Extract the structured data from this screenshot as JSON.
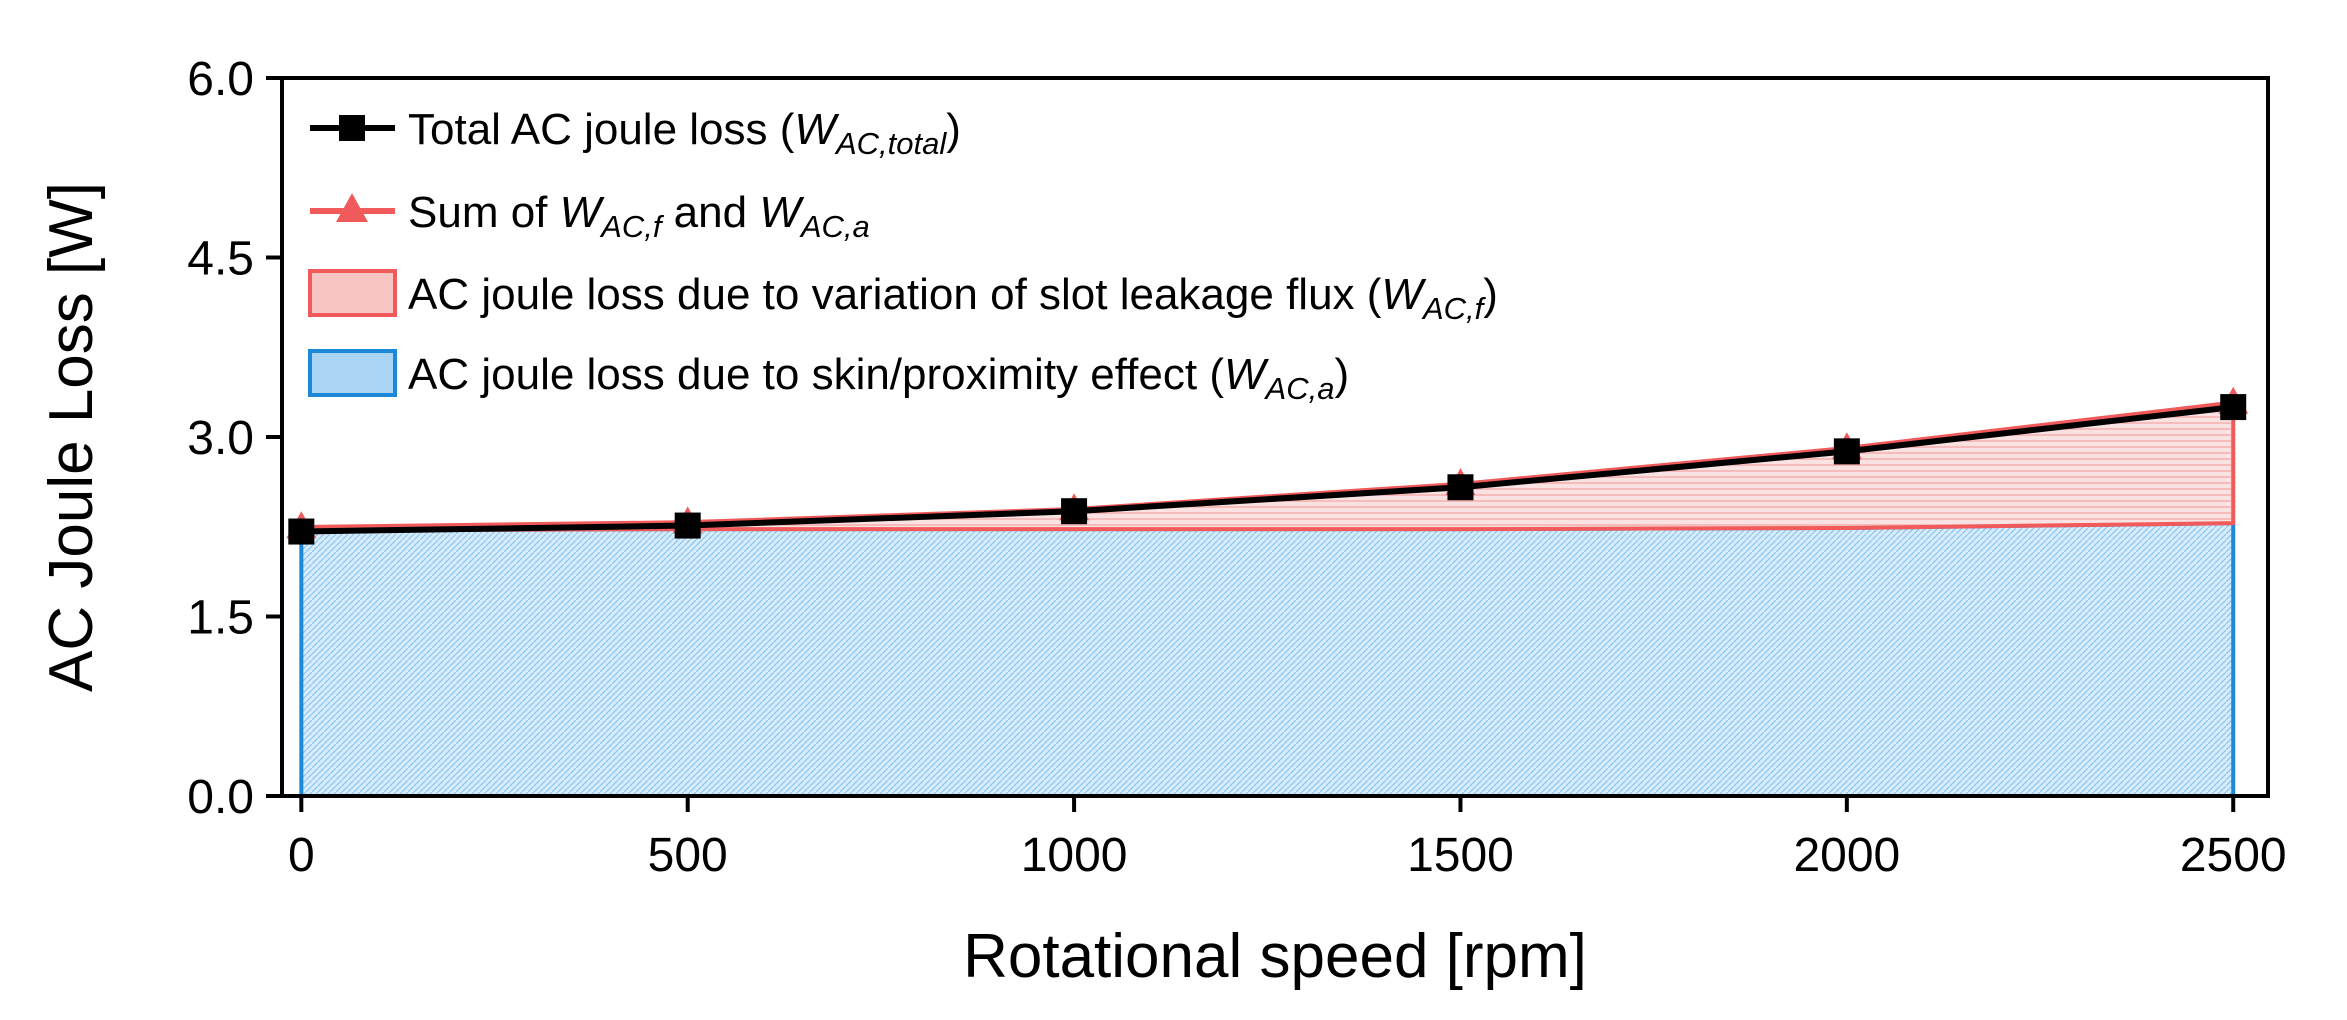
{
  "chart_data": {
    "type": "area",
    "xlabel": "Rotational speed [rpm]",
    "ylabel": "AC Joule Loss [W]",
    "xlim": [
      -25,
      2545
    ],
    "ylim": [
      0,
      6.0
    ],
    "xticks": [
      "0",
      "500",
      "1000",
      "1500",
      "2000",
      "2500"
    ],
    "yticks": [
      "0.0",
      "1.5",
      "3.0",
      "4.5",
      "6.0"
    ],
    "x": [
      0,
      500,
      1000,
      1500,
      2000,
      2500
    ],
    "grid": false,
    "legend_position": "top-left",
    "series": [
      {
        "key": "total",
        "type": "line",
        "marker": "square",
        "color": "#000000",
        "values": [
          2.21,
          2.26,
          2.38,
          2.58,
          2.88,
          3.25
        ],
        "legend_text": "Total AC joule loss (",
        "legend_var": "W",
        "legend_sub": "AC,total",
        "legend_suffix": ")"
      },
      {
        "key": "sum",
        "type": "line",
        "marker": "triangle",
        "color": "#f05a5a",
        "values": [
          2.24,
          2.28,
          2.39,
          2.6,
          2.9,
          3.28
        ],
        "legend_text": "Sum of ",
        "legend_var": "W",
        "legend_sub": "AC,f",
        "legend_mid": " and ",
        "legend_var2": "W",
        "legend_sub2": "AC,a"
      },
      {
        "key": "slot_leakage",
        "type": "area",
        "color": "#f05a5a",
        "fill": "#f8c4c4",
        "values": [
          0.02,
          0.05,
          0.16,
          0.37,
          0.66,
          1.0
        ],
        "legend_text": "AC joule loss due to variation of slot leakage flux (",
        "legend_var": "W",
        "legend_sub": "AC,f",
        "legend_suffix": ")"
      },
      {
        "key": "skin_proximity",
        "type": "area",
        "color": "#1e88d8",
        "fill": "#a9d4f4",
        "values": [
          2.22,
          2.23,
          2.23,
          2.23,
          2.24,
          2.28
        ],
        "legend_text": "AC joule loss due to skin/proximity effect (",
        "legend_var": "W",
        "legend_sub": "AC,a",
        "legend_suffix": ")"
      }
    ]
  }
}
